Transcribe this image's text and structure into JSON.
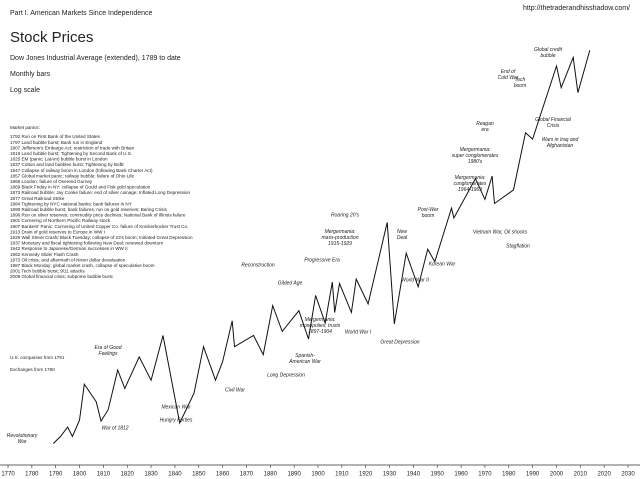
{
  "chart_data": {
    "type": "line",
    "header": "Part I. American Markets Since Independence",
    "url": "http://thetraderandhisshadow.com/",
    "title": "Stock Prices",
    "subtitle": "Dow Jones Industrial Average (extended), 1789 to date",
    "notes": [
      "Monthly bars",
      "Log scale"
    ],
    "side_notes": [
      "U.S. companies from 1791",
      "Exchanges from 1790"
    ],
    "panics_title": "Market panics:",
    "panics": [
      "1792 Run on First Bank of the United States",
      "1797 Land bubble burst; Bank run in England",
      "1807 Jefferson's Embargo Act: restriction of trade with Britain",
      "1819 Land bubble burst; Tightening by Second Bank of U.S.",
      "1825 EM (panic; LatAm) bubble burst in London",
      "1837 Cotton and land bubbles burst; Tightening by BofE",
      "1847 Collapse of railway boom in London (following Bank Charter Act)",
      "1857 Global market panic; railway bubble; failure of Ohio Life",
      "1866 London: failure of Overend Gurney",
      "1869 Black Friday in NY: collapse of Gould and Fisk gold speculation",
      "1873 Railroad bubble; Jay Cooke failure; end of silver coinage; Inflated Long Depression",
      "1877 Great Railroad Strike",
      "1884 Tightening by NYC national banks; bank failures in NY",
      "1890 Railroad bubble burst, bank failures, run on gold reserves; Baring Crisis",
      "1896 Run on silver reserves; commodity price declines; National Bank of Illinois failure",
      "1901 Cornering of Northern Pacific Railway stock",
      "1907 Bankers' Panic: Cornering of United Copper Co. failure of Knickerbocker Trust Co.",
      "1913 Drain of gold reserves to Europe in WW I",
      "1929 Wall Street Crash/ Black Tuesday; collapse of 23's boom; Initiated Great Depression",
      "1937 Monetary and fiscal tightening following New Deal; renewed downturn",
      "1942 Response to Japanese/German successes in WW II",
      "1962 Kennedy Slide/ Flash Crash",
      "1973 Oil crisis, and aftermath of Nixon dollar devaluation",
      "1987 Black Monday; global market crash, collapse of speculative boom",
      "2001 Tech bubble burst; 9/11 attacks",
      "2009 Global financial crisis; subprime bubble burst"
    ],
    "annotations": [
      "Revolutionary\nWar",
      "War of 1812",
      "Era of Good\nFeelings",
      "Mexican War",
      "Hungry Forties",
      "Civil War",
      "Reconstruction",
      "Gilded Age",
      "Long Depression",
      "Spanish-\nAmerican War",
      "Mergermania:\nmonopolies, trusts\n1897-1904",
      "Progressive Era",
      "World War I",
      "Roaring 20's",
      "Mergermania:\nmass-production\n1915-1929",
      "Great Depression",
      "New\nDeal",
      "World War II",
      "Post-War\nboom",
      "Korean War",
      "Mergermania:\nconglomerates\n1964-1969",
      "Vietnam War, Oil shocks",
      "Stagflation",
      "Reagan\nera",
      "Mergermania:\nsuper conglomerates\n1980's",
      "End of\nCold War",
      "Tech\nboom",
      "Global credit\nbubble",
      "Global Financial\nCrisis",
      "Wars in Iraq and\nAfghanistan"
    ],
    "x": [
      1789,
      1792,
      1795,
      1797,
      1800,
      1802,
      1807,
      1809,
      1812,
      1816,
      1819,
      1825,
      1830,
      1835,
      1842,
      1848,
      1852,
      1857,
      1860,
      1864,
      1865,
      1873,
      1877,
      1881,
      1885,
      1892,
      1896,
      1899,
      1903,
      1906,
      1907,
      1909,
      1914,
      1916,
      1921,
      1929,
      1932,
      1937,
      1942,
      1946,
      1949,
      1956,
      1957,
      1966,
      1970,
      1973,
      1974,
      1982,
      1987,
      1990,
      2000,
      2002,
      2007,
      2009,
      2014
    ],
    "values": [
      3,
      3.5,
      4.3,
      3.5,
      5,
      11,
      7.5,
      4.9,
      6.3,
      15,
      10,
      20,
      12,
      32,
      4.7,
      9,
      25,
      12,
      18,
      44.1,
      25,
      32,
      21,
      61.6,
      35,
      55,
      29.6,
      77,
      42,
      103,
      53,
      100,
      53,
      110,
      63.9,
      381.2,
      41.2,
      194,
      92.9,
      212,
      161,
      521,
      420,
      995,
      631,
      1051,
      577,
      777,
      2722,
      2365,
      11723,
      7286,
      14165,
      6547,
      16576
    ],
    "color": "#111111",
    "log_scale": true,
    "xlim": [
      1770,
      2030
    ],
    "ylim": [
      2,
      40000
    ],
    "xticks": [
      1770,
      1780,
      1790,
      1800,
      1810,
      1820,
      1830,
      1840,
      1850,
      1860,
      1870,
      1880,
      1890,
      1900,
      1910,
      1920,
      1930,
      1940,
      1950,
      1960,
      1970,
      1980,
      1990,
      2000,
      2010,
      2020,
      2030
    ]
  }
}
